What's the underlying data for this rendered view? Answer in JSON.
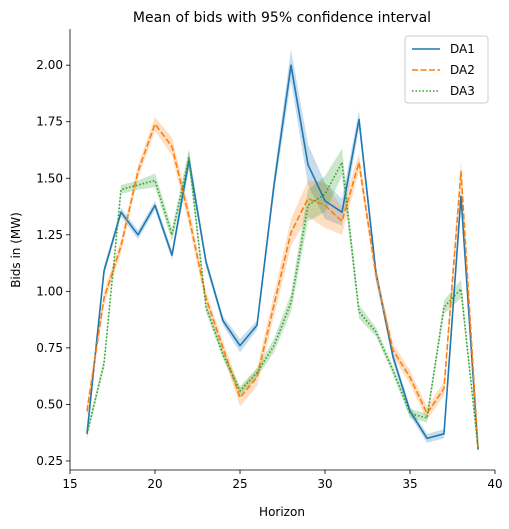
{
  "chart_data": {
    "type": "line",
    "title": "Mean of bids with 95% confidence interval",
    "xlabel": "Horizon",
    "ylabel": "Bids in (MW)",
    "xlim": [
      15,
      40
    ],
    "ylim": [
      0.21,
      2.16
    ],
    "xticks": [
      15,
      20,
      25,
      30,
      35,
      40
    ],
    "yticks": [
      0.25,
      0.5,
      0.75,
      1.0,
      1.25,
      1.5,
      1.75,
      2.0
    ],
    "ytick_labels": [
      "0.25",
      "0.50",
      "0.75",
      "1.00",
      "1.25",
      "1.50",
      "1.75",
      "2.00"
    ],
    "grid": false,
    "legend": "top-right",
    "x": [
      16,
      17,
      18,
      19,
      20,
      21,
      22,
      23,
      24,
      25,
      26,
      27,
      28,
      29,
      30,
      31,
      32,
      33,
      34,
      35,
      36,
      37,
      38,
      39
    ],
    "series": [
      {
        "name": "DA1",
        "color": "#1f77b4",
        "dash": "solid",
        "values": [
          0.37,
          1.09,
          1.35,
          1.25,
          1.38,
          1.16,
          1.58,
          1.13,
          0.87,
          0.76,
          0.85,
          1.47,
          2.0,
          1.56,
          1.4,
          1.35,
          1.76,
          1.08,
          0.71,
          0.47,
          0.35,
          0.37,
          1.42,
          0.3
        ],
        "ci": [
          0.02,
          0.02,
          0.02,
          0.02,
          0.02,
          0.02,
          0.04,
          0.02,
          0.02,
          0.03,
          0.02,
          0.04,
          0.07,
          0.09,
          0.08,
          0.06,
          0.04,
          0.03,
          0.02,
          0.02,
          0.02,
          0.02,
          0.04,
          0.01
        ]
      },
      {
        "name": "DA2",
        "color": "#ff7f0e",
        "dash": "dashed",
        "values": [
          0.47,
          0.97,
          1.2,
          1.53,
          1.74,
          1.64,
          1.33,
          0.97,
          0.75,
          0.53,
          0.62,
          0.94,
          1.26,
          1.41,
          1.38,
          1.31,
          1.57,
          1.07,
          0.74,
          0.62,
          0.46,
          0.57,
          1.53,
          0.31
        ],
        "ci": [
          0.03,
          0.03,
          0.03,
          0.03,
          0.03,
          0.04,
          0.04,
          0.03,
          0.03,
          0.04,
          0.04,
          0.05,
          0.06,
          0.08,
          0.1,
          0.06,
          0.04,
          0.03,
          0.03,
          0.03,
          0.03,
          0.03,
          0.05,
          0.01
        ]
      },
      {
        "name": "DA3",
        "color": "#2ca02c",
        "dash": "dotted",
        "values": [
          0.37,
          0.68,
          1.45,
          1.47,
          1.49,
          1.25,
          1.59,
          0.93,
          0.72,
          0.56,
          0.64,
          0.76,
          0.95,
          1.38,
          1.43,
          1.57,
          0.91,
          0.82,
          0.65,
          0.46,
          0.44,
          0.93,
          1.01,
          0.31
        ],
        "ci": [
          0.02,
          0.02,
          0.02,
          0.02,
          0.03,
          0.03,
          0.04,
          0.02,
          0.02,
          0.02,
          0.02,
          0.03,
          0.04,
          0.07,
          0.08,
          0.06,
          0.03,
          0.02,
          0.02,
          0.02,
          0.02,
          0.03,
          0.04,
          0.01
        ]
      }
    ]
  }
}
